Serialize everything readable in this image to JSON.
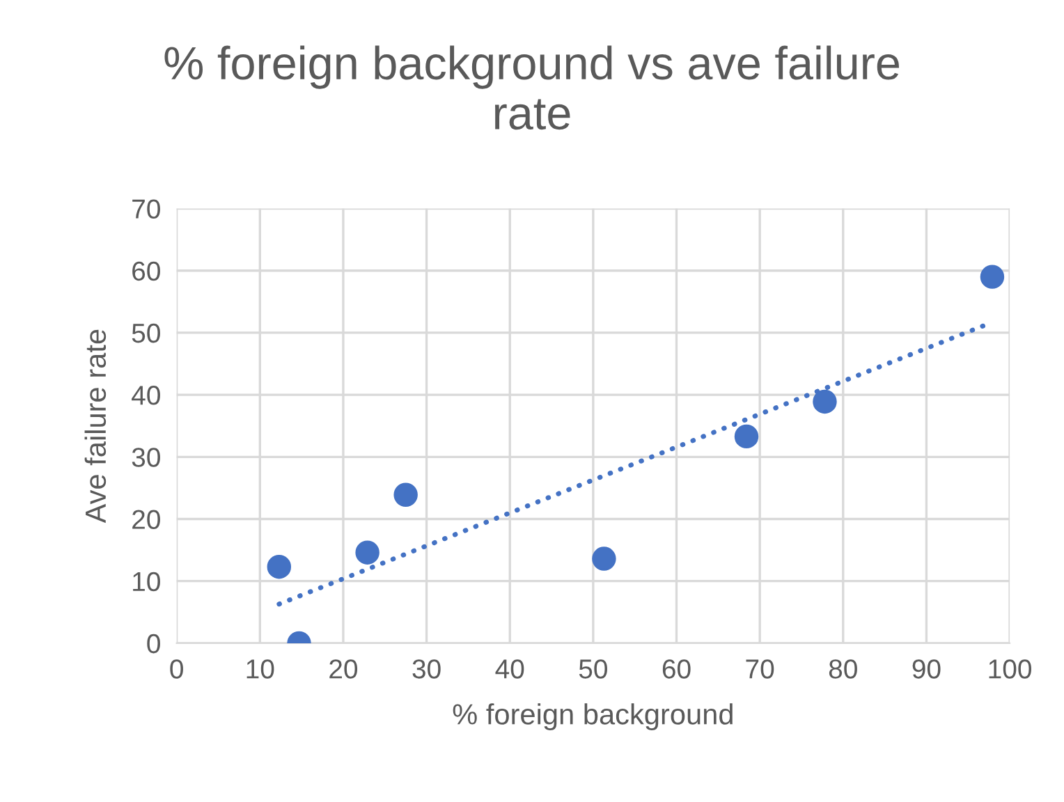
{
  "chart_data": {
    "type": "scatter",
    "title": "% foreign background vs ave failure rate",
    "xlabel": "% foreign background",
    "ylabel": "Ave failure rate",
    "series": [
      {
        "color": "#4472c4",
        "marker": "circle",
        "x": [
          12.3,
          14.7,
          22.9,
          27.5,
          51.3,
          68.4,
          77.8,
          97.9
        ],
        "values": [
          12.3,
          0,
          14.6,
          23.9,
          13.6,
          33.3,
          38.9,
          59.0
        ]
      },
      {
        "type": "line",
        "color": "#4472c4",
        "marker": "none",
        "line_style": "dotted",
        "x": [
          12.3,
          97.0
        ],
        "values": [
          6.3,
          51.2
        ]
      }
    ],
    "xlim": [
      0,
      100
    ],
    "ylim": [
      0,
      70
    ],
    "xticks": [
      0,
      10,
      20,
      30,
      40,
      50,
      60,
      70,
      80,
      90,
      100
    ],
    "yticks": [
      0,
      10,
      20,
      30,
      40,
      50,
      60,
      70
    ],
    "grid": true,
    "legend": false
  }
}
